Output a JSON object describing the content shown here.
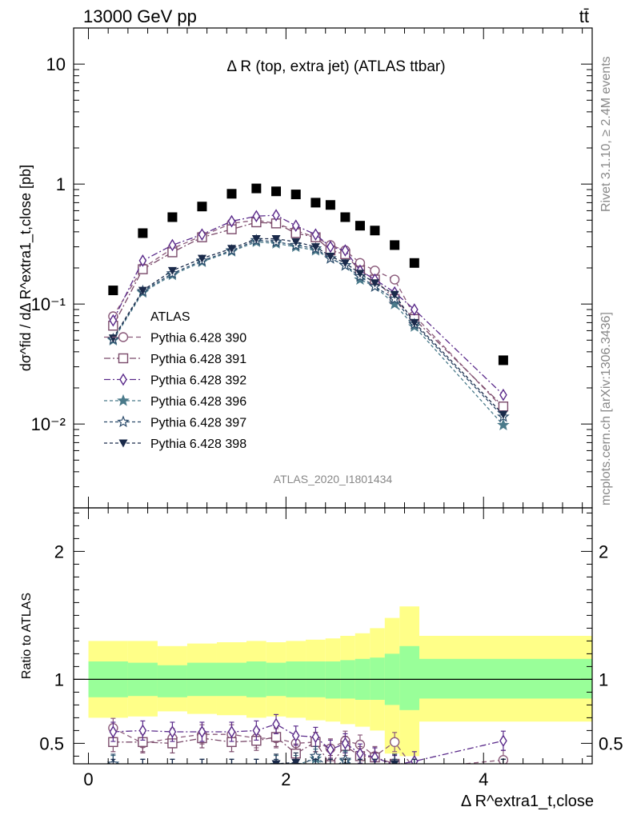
{
  "header": {
    "energy_label": "13000 GeV pp",
    "process_label": "tt̄"
  },
  "side_labels": {
    "rivet": "Rivet 3.1.10, ≥ 2.4M events",
    "mcplots": "mcplots.cern.ch [arXiv:1306.3436]"
  },
  "watermark": "ATLAS_2020_I1801434",
  "chart_data": [
    {
      "type": "scatter",
      "panel": "main",
      "title": "Δ R (top, extra jet) (ATLAS ttbar)",
      "ylabel": "dσ^fid / dΔ R^extra1_t,close [pb]",
      "yscale": "log",
      "ylim": [
        0.002,
        20
      ],
      "xlim": [
        -0.15,
        5.1
      ],
      "yticks": [
        {
          "v": 0.01,
          "label": "10⁻²"
        },
        {
          "v": 0.1,
          "label": "10⁻¹"
        },
        {
          "v": 1,
          "label": "1"
        },
        {
          "v": 10,
          "label": "10"
        }
      ],
      "legend_position": "center-left",
      "x": [
        0.25,
        0.55,
        0.85,
        1.15,
        1.45,
        1.7,
        1.9,
        2.1,
        2.3,
        2.45,
        2.6,
        2.75,
        2.9,
        3.1,
        3.3,
        4.2
      ],
      "series": [
        {
          "name": "ATLAS",
          "marker": "square-filled",
          "color": "#000000",
          "values": [
            0.13,
            0.39,
            0.53,
            0.65,
            0.83,
            0.92,
            0.87,
            0.82,
            0.7,
            0.67,
            0.53,
            0.45,
            0.41,
            0.31,
            0.22,
            0.034
          ]
        },
        {
          "name": "Pythia 6.428 390",
          "marker": "circle-open",
          "color": "#8a5a7a",
          "dash": "6,4",
          "values": [
            0.079,
            0.2,
            0.29,
            0.37,
            0.47,
            0.5,
            0.47,
            0.41,
            0.36,
            0.31,
            0.28,
            0.22,
            0.19,
            0.16,
            0.08,
            0.0135
          ]
        },
        {
          "name": "Pythia 6.428 391",
          "marker": "square-open",
          "color": "#7a4a6a",
          "dash": "8,3,2,3",
          "values": [
            0.066,
            0.195,
            0.27,
            0.36,
            0.42,
            0.48,
            0.47,
            0.39,
            0.36,
            0.28,
            0.26,
            0.19,
            0.16,
            0.11,
            0.075,
            0.014
          ]
        },
        {
          "name": "Pythia 6.428 392",
          "marker": "diamond-open",
          "color": "#5a2a8a",
          "dash": "8,3,2,3",
          "values": [
            0.073,
            0.23,
            0.31,
            0.38,
            0.49,
            0.54,
            0.55,
            0.45,
            0.38,
            0.3,
            0.28,
            0.19,
            0.16,
            0.125,
            0.09,
            0.0175
          ]
        },
        {
          "name": "Pythia 6.428 396",
          "marker": "star-filled",
          "color": "#4a7a8a",
          "dash": "4,3",
          "values": [
            0.05,
            0.125,
            0.175,
            0.225,
            0.275,
            0.33,
            0.32,
            0.3,
            0.28,
            0.24,
            0.21,
            0.16,
            0.14,
            0.1,
            0.065,
            0.0098
          ]
        },
        {
          "name": "Pythia 6.428 397",
          "marker": "star-open",
          "color": "#2a4a6a",
          "dash": "4,3",
          "values": [
            0.051,
            0.128,
            0.18,
            0.23,
            0.28,
            0.34,
            0.33,
            0.31,
            0.29,
            0.24,
            0.21,
            0.17,
            0.14,
            0.11,
            0.068,
            0.0115
          ]
        },
        {
          "name": "Pythia 6.428 398",
          "marker": "triangle-down-filled",
          "color": "#1a2a4a",
          "dash": "4,3",
          "values": [
            0.052,
            0.13,
            0.19,
            0.24,
            0.29,
            0.35,
            0.35,
            0.33,
            0.3,
            0.25,
            0.22,
            0.18,
            0.15,
            0.12,
            0.07,
            0.012
          ]
        }
      ]
    },
    {
      "type": "scatter",
      "panel": "ratio",
      "ylabel": "Ratio to ATLAS",
      "xlabel": "Δ R^extra1_t,close",
      "ylim": [
        0.34,
        2.34
      ],
      "xlim": [
        -0.15,
        5.1
      ],
      "xticks": [
        {
          "v": 0,
          "label": "0"
        },
        {
          "v": 2,
          "label": "2"
        },
        {
          "v": 4,
          "label": "4"
        }
      ],
      "yticks": [
        {
          "v": 0.5,
          "label": "0.5"
        },
        {
          "v": 1,
          "label": "1"
        },
        {
          "v": 2,
          "label": "2"
        }
      ],
      "band_edges": [
        0,
        0.4,
        0.7,
        1.0,
        1.3,
        1.6,
        1.8,
        2.0,
        2.2,
        2.4,
        2.55,
        2.7,
        2.85,
        3.0,
        3.15,
        3.35,
        5.1
      ],
      "band_green_low": [
        0.86,
        0.87,
        0.86,
        0.87,
        0.87,
        0.86,
        0.87,
        0.86,
        0.86,
        0.85,
        0.85,
        0.84,
        0.84,
        0.8,
        0.76,
        0.85
      ],
      "band_green_high": [
        1.14,
        1.13,
        1.11,
        1.13,
        1.13,
        1.14,
        1.13,
        1.14,
        1.14,
        1.14,
        1.15,
        1.16,
        1.17,
        1.2,
        1.26,
        1.16
      ],
      "band_yellow_low": [
        0.7,
        0.71,
        0.75,
        0.73,
        0.72,
        0.7,
        0.71,
        0.7,
        0.68,
        0.67,
        0.65,
        0.63,
        0.6,
        0.42,
        0.4,
        0.67
      ],
      "band_yellow_high": [
        1.3,
        1.3,
        1.26,
        1.28,
        1.29,
        1.3,
        1.29,
        1.3,
        1.31,
        1.32,
        1.34,
        1.36,
        1.4,
        1.48,
        1.57,
        1.34
      ],
      "x": [
        0.25,
        0.55,
        0.85,
        1.15,
        1.45,
        1.7,
        1.9,
        2.1,
        2.3,
        2.45,
        2.6,
        2.75,
        2.9,
        3.1,
        3.3,
        4.2
      ],
      "series": [
        {
          "name": "Pythia 6.428 390",
          "values": [
            0.62,
            0.5,
            0.54,
            0.57,
            0.57,
            0.54,
            0.54,
            0.5,
            0.51,
            0.46,
            0.52,
            0.49,
            0.4,
            0.51,
            0.3,
            0.37
          ]
        },
        {
          "name": "Pythia 6.428 391",
          "values": [
            0.51,
            0.51,
            0.5,
            0.54,
            0.51,
            0.52,
            0.55,
            0.42,
            0.51,
            0.33,
            0.48,
            0.4,
            0.39,
            0.34,
            0.3,
            0.3
          ]
        },
        {
          "name": "Pythia 6.428 392",
          "values": [
            0.59,
            0.6,
            0.59,
            0.59,
            0.59,
            0.6,
            0.65,
            0.56,
            0.55,
            0.45,
            0.5,
            0.42,
            0.39,
            0.33,
            0.36,
            0.52
          ]
        },
        {
          "name": "Pythia 6.428 396",
          "values": [
            0.33,
            0.3,
            0.3,
            0.3,
            0.3,
            0.3,
            0.33,
            0.33,
            0.38,
            0.3,
            0.36,
            0.3,
            0.3,
            0.3,
            0.3,
            0.3
          ]
        },
        {
          "name": "Pythia 6.428 397",
          "values": [
            0.34,
            0.3,
            0.3,
            0.3,
            0.3,
            0.3,
            0.3,
            0.3,
            0.4,
            0.3,
            0.37,
            0.3,
            0.3,
            0.3,
            0.3,
            0.3
          ]
        },
        {
          "name": "Pythia 6.428 398",
          "values": [
            0.3,
            0.3,
            0.3,
            0.3,
            0.3,
            0.3,
            0.34,
            0.35,
            0.3,
            0.3,
            0.3,
            0.3,
            0.3,
            0.34,
            0.3,
            0.3
          ]
        }
      ]
    }
  ]
}
